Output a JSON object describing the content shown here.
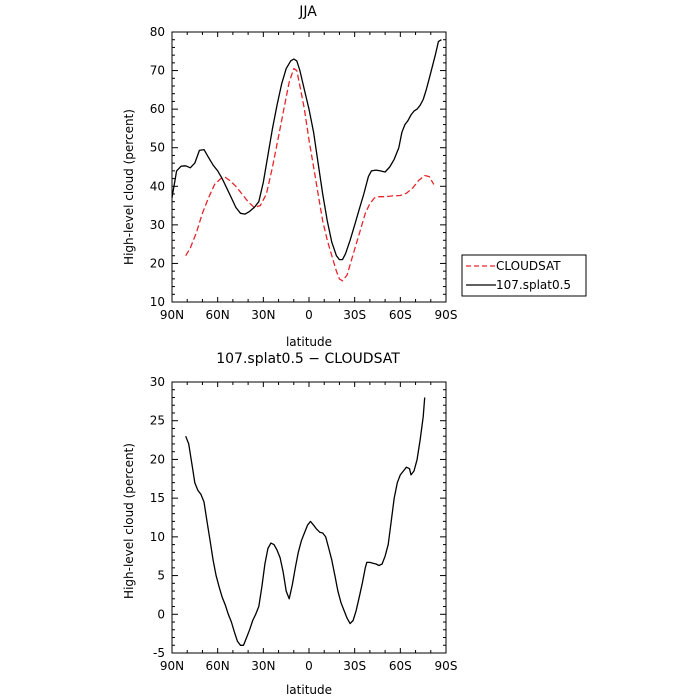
{
  "chart_data": [
    {
      "type": "line",
      "title": "JJA",
      "xlabel": "latitude",
      "ylabel": "High-level cloud (percent)",
      "xlim": [
        90,
        -90
      ],
      "ylim": [
        10,
        80
      ],
      "x_ticks": [
        90,
        60,
        30,
        0,
        -30,
        -60,
        -90
      ],
      "x_tick_labels": [
        "90N",
        "60N",
        "30N",
        "0",
        "30S",
        "60S",
        "90S"
      ],
      "y_ticks": [
        10,
        20,
        30,
        40,
        50,
        60,
        70,
        80
      ],
      "legend_position": "right",
      "series": [
        {
          "name": "CLOUDSAT",
          "color": "#e8252b",
          "dash": "dashed",
          "points": [
            [
              81,
              22
            ],
            [
              78,
              24
            ],
            [
              74,
              28
            ],
            [
              70,
              33
            ],
            [
              66,
              37
            ],
            [
              62,
              40.5
            ],
            [
              58,
              42
            ],
            [
              55,
              42.3
            ],
            [
              52,
              41.5
            ],
            [
              48,
              40
            ],
            [
              44,
              38
            ],
            [
              40,
              36
            ],
            [
              36,
              34.5
            ],
            [
              32,
              35
            ],
            [
              28,
              38
            ],
            [
              24,
              45
            ],
            [
              20,
              53
            ],
            [
              16,
              61
            ],
            [
              13,
              67
            ],
            [
              10,
              70.5
            ],
            [
              8,
              70
            ],
            [
              6,
              66
            ],
            [
              3,
              60
            ],
            [
              0,
              52
            ],
            [
              -3,
              45
            ],
            [
              -6,
              38
            ],
            [
              -9,
              31
            ],
            [
              -12,
              26
            ],
            [
              -15,
              22
            ],
            [
              -18,
              18
            ],
            [
              -20,
              16
            ],
            [
              -22,
              15.5
            ],
            [
              -25,
              17
            ],
            [
              -28,
              21
            ],
            [
              -31,
              25
            ],
            [
              -34,
              29
            ],
            [
              -37,
              33
            ],
            [
              -40,
              35.5
            ],
            [
              -43,
              37
            ],
            [
              -46,
              37.3
            ],
            [
              -50,
              37.3
            ],
            [
              -55,
              37.5
            ],
            [
              -60,
              37.6
            ],
            [
              -64,
              38.2
            ],
            [
              -68,
              39.5
            ],
            [
              -72,
              41.5
            ],
            [
              -76,
              42.8
            ],
            [
              -79,
              42.5
            ],
            [
              -82,
              40.5
            ]
          ]
        },
        {
          "name": "107.splat0.5",
          "color": "#000000",
          "dash": "solid",
          "points": [
            [
              90,
              37
            ],
            [
              87,
              44
            ],
            [
              84,
              45.2
            ],
            [
              81,
              45.3
            ],
            [
              78,
              44.8
            ],
            [
              75,
              46
            ],
            [
              72,
              49.3
            ],
            [
              69,
              49.5
            ],
            [
              66,
              47.5
            ],
            [
              63,
              45.5
            ],
            [
              60,
              44
            ],
            [
              57,
              42
            ],
            [
              54,
              39.5
            ],
            [
              51,
              37
            ],
            [
              48,
              34.5
            ],
            [
              45,
              33
            ],
            [
              42,
              32.8
            ],
            [
              39,
              33.5
            ],
            [
              36,
              34.5
            ],
            [
              33,
              36
            ],
            [
              30,
              41
            ],
            [
              27,
              48
            ],
            [
              24,
              55
            ],
            [
              21,
              61
            ],
            [
              18,
              66.5
            ],
            [
              15,
              70.5
            ],
            [
              12,
              72.5
            ],
            [
              10,
              73
            ],
            [
              8,
              72.5
            ],
            [
              6,
              70
            ],
            [
              3,
              65
            ],
            [
              0,
              60
            ],
            [
              -3,
              54
            ],
            [
              -6,
              46
            ],
            [
              -9,
              38
            ],
            [
              -12,
              31
            ],
            [
              -15,
              25.5
            ],
            [
              -18,
              22
            ],
            [
              -20,
              21
            ],
            [
              -22,
              21
            ],
            [
              -24,
              22.5
            ],
            [
              -27,
              26
            ],
            [
              -30,
              30
            ],
            [
              -33,
              34
            ],
            [
              -36,
              38
            ],
            [
              -39,
              42.5
            ],
            [
              -41,
              44
            ],
            [
              -44,
              44.2
            ],
            [
              -47,
              44
            ],
            [
              -50,
              43.7
            ],
            [
              -53,
              45
            ],
            [
              -56,
              47
            ],
            [
              -59,
              50
            ],
            [
              -61,
              54
            ],
            [
              -63,
              56
            ],
            [
              -65,
              57
            ],
            [
              -67,
              58.5
            ],
            [
              -69,
              59.5
            ],
            [
              -71,
              60
            ],
            [
              -73,
              61
            ],
            [
              -75,
              62.5
            ],
            [
              -77,
              65
            ],
            [
              -79,
              68
            ],
            [
              -81,
              71
            ],
            [
              -83,
              74
            ],
            [
              -85,
              77.5
            ],
            [
              -87,
              78
            ]
          ]
        }
      ]
    },
    {
      "type": "line",
      "title": "107.splat0.5 − CLOUDSAT",
      "xlabel": "latitude",
      "ylabel": "High-level cloud (percent)",
      "xlim": [
        90,
        -90
      ],
      "ylim": [
        -5,
        30
      ],
      "x_ticks": [
        90,
        60,
        30,
        0,
        -30,
        -60,
        -90
      ],
      "x_tick_labels": [
        "90N",
        "60N",
        "30N",
        "0",
        "30S",
        "60S",
        "90S"
      ],
      "y_ticks": [
        -5,
        0,
        5,
        10,
        15,
        20,
        25,
        30
      ],
      "series": [
        {
          "color": "#000000",
          "dash": "solid",
          "points": [
            [
              81,
              23
            ],
            [
              79,
              22
            ],
            [
              77,
              19.5
            ],
            [
              75,
              17
            ],
            [
              73,
              16
            ],
            [
              71,
              15.5
            ],
            [
              69,
              14.5
            ],
            [
              67,
              12
            ],
            [
              65,
              9.5
            ],
            [
              63,
              7
            ],
            [
              61,
              5
            ],
            [
              59,
              3.5
            ],
            [
              57,
              2.2
            ],
            [
              55,
              1.2
            ],
            [
              53,
              0
            ],
            [
              51,
              -1
            ],
            [
              49,
              -2.3
            ],
            [
              47,
              -3.5
            ],
            [
              45,
              -4
            ],
            [
              43,
              -4
            ],
            [
              41,
              -3
            ],
            [
              39,
              -2
            ],
            [
              37,
              -0.8
            ],
            [
              35,
              0
            ],
            [
              33,
              1
            ],
            [
              31,
              3.5
            ],
            [
              29,
              6.5
            ],
            [
              27,
              8.5
            ],
            [
              25,
              9.2
            ],
            [
              23,
              9
            ],
            [
              21,
              8.3
            ],
            [
              19,
              7.3
            ],
            [
              17,
              5.5
            ],
            [
              15,
              3
            ],
            [
              13,
              2
            ],
            [
              11,
              3.8
            ],
            [
              9,
              6
            ],
            [
              7,
              8
            ],
            [
              5,
              9.5
            ],
            [
              3,
              10.5
            ],
            [
              1,
              11.5
            ],
            [
              -1,
              12
            ],
            [
              -3,
              11.5
            ],
            [
              -5,
              11
            ],
            [
              -7,
              10.6
            ],
            [
              -9,
              10.5
            ],
            [
              -11,
              10
            ],
            [
              -13,
              8.5
            ],
            [
              -15,
              7
            ],
            [
              -17,
              5
            ],
            [
              -19,
              3
            ],
            [
              -21,
              1.5
            ],
            [
              -23,
              0.5
            ],
            [
              -25,
              -0.5
            ],
            [
              -27,
              -1.2
            ],
            [
              -29,
              -0.8
            ],
            [
              -31,
              0.5
            ],
            [
              -33,
              2.2
            ],
            [
              -35,
              4
            ],
            [
              -37,
              6
            ],
            [
              -38,
              6.7
            ],
            [
              -40,
              6.7
            ],
            [
              -42,
              6.6
            ],
            [
              -44,
              6.5
            ],
            [
              -46,
              6.3
            ],
            [
              -48,
              6.5
            ],
            [
              -50,
              7.5
            ],
            [
              -52,
              9
            ],
            [
              -54,
              12
            ],
            [
              -56,
              15
            ],
            [
              -58,
              17
            ],
            [
              -60,
              18
            ],
            [
              -62,
              18.5
            ],
            [
              -64,
              19
            ],
            [
              -66,
              18.8
            ],
            [
              -67,
              18
            ],
            [
              -69,
              18.5
            ],
            [
              -71,
              20
            ],
            [
              -73,
              22.5
            ],
            [
              -75,
              25.5
            ],
            [
              -76,
              28
            ]
          ]
        }
      ]
    }
  ]
}
